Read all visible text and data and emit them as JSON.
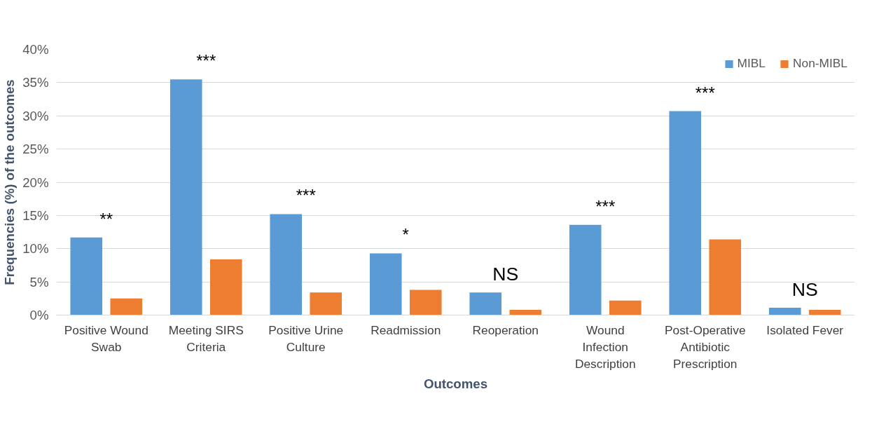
{
  "chart_data": {
    "type": "bar",
    "xlabel": "Outcomes",
    "ylabel": "Frequencies (%) of the outcomes",
    "categories": [
      "Positive Wound Swab",
      "Meeting SIRS Criteria",
      "Positive Urine Culture",
      "Readmission",
      "Reoperation",
      "Wound Infection Description",
      "Post-Operative Antibiotic Prescription",
      "Isolated Fever"
    ],
    "series": [
      {
        "name": "MIBL",
        "color": "#5b9bd5",
        "values": [
          11.7,
          35.5,
          15.2,
          9.3,
          3.4,
          13.6,
          30.7,
          1.1
        ]
      },
      {
        "name": "Non-MIBL",
        "color": "#ed7d31",
        "values": [
          2.5,
          8.4,
          3.4,
          3.8,
          0.8,
          2.2,
          11.4,
          0.8
        ]
      }
    ],
    "ylim": [
      0,
      40
    ],
    "yticks": [
      {
        "value": 0,
        "label": "0%"
      },
      {
        "value": 5,
        "label": "5%"
      },
      {
        "value": 10,
        "label": "10%"
      },
      {
        "value": 15,
        "label": "15%"
      },
      {
        "value": 20,
        "label": "20%"
      },
      {
        "value": 25,
        "label": "25%"
      },
      {
        "value": 30,
        "label": "30%"
      },
      {
        "value": 35,
        "label": "35%"
      },
      {
        "value": 40,
        "label": "40%"
      }
    ],
    "grid": "y",
    "legend": "top right",
    "annotations": [
      "**",
      "***",
      "***",
      "*",
      "NS",
      "***",
      "***",
      "NS"
    ]
  }
}
